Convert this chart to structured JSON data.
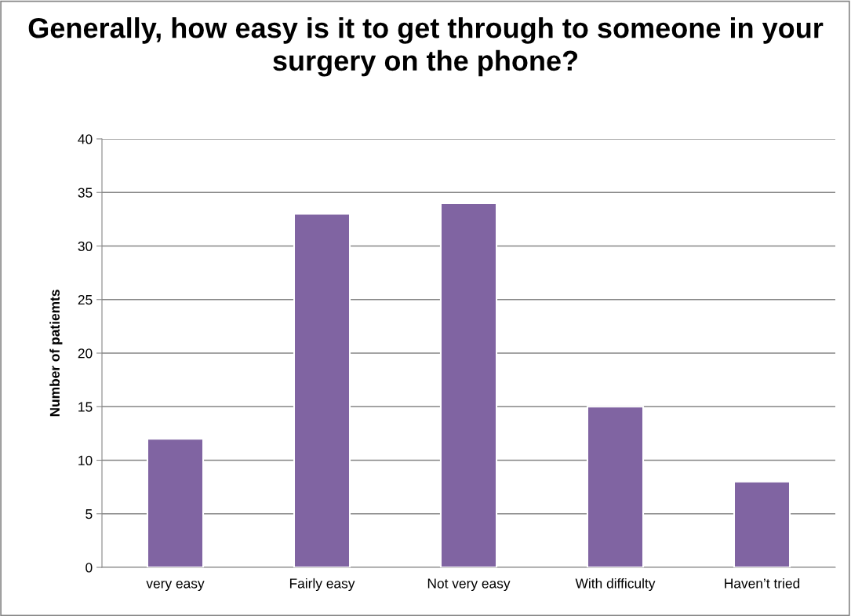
{
  "chart_data": {
    "type": "bar",
    "title": "Generally, how easy is it to get through to someone in your surgery on the phone?",
    "ylabel": "Number of patiemts",
    "categories": [
      "very easy",
      "Fairly easy",
      "Not very easy",
      "With difficulty",
      "Haven’t tried"
    ],
    "values": [
      12,
      33,
      34,
      15,
      8
    ],
    "color": "#8064a2",
    "ylim": [
      0,
      40
    ],
    "yticks": [
      0,
      5,
      10,
      15,
      20,
      25,
      30,
      35,
      40
    ],
    "grid": "y",
    "legend": false
  }
}
